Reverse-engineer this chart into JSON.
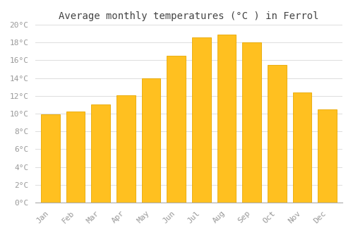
{
  "title": "Average monthly temperatures (°C ) in Ferrol",
  "months": [
    "Jan",
    "Feb",
    "Mar",
    "Apr",
    "May",
    "Jun",
    "Jul",
    "Aug",
    "Sep",
    "Oct",
    "Nov",
    "Dec"
  ],
  "temperatures": [
    9.9,
    10.2,
    11.0,
    12.1,
    14.0,
    16.5,
    18.6,
    18.9,
    18.0,
    15.5,
    12.4,
    10.5
  ],
  "bar_color_face": "#FFC020",
  "bar_color_edge": "#E8A800",
  "background_color": "#FFFFFF",
  "grid_color": "#DDDDDD",
  "ylim": [
    0,
    20
  ],
  "ytick_interval": 2,
  "title_fontsize": 10,
  "tick_fontsize": 8,
  "tick_label_color": "#999999",
  "title_color": "#444444",
  "font_family": "monospace",
  "bar_width": 0.75
}
